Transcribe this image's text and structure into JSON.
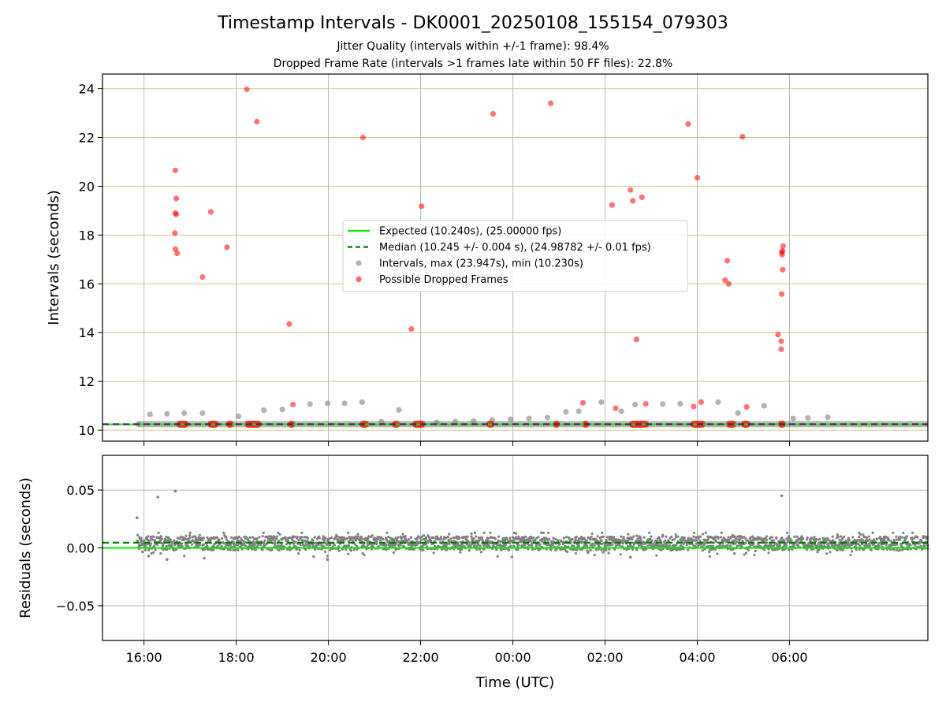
{
  "chart_data": [
    {
      "type": "scatter",
      "title": "Timestamp Intervals - DK0001_20250108_155154_079303",
      "subtitle_lines": [
        "Jitter Quality (intervals within +/-1 frame): 98.4%",
        "Dropped Frame Rate (intervals >1 frames late within 50 FF files): 22.8%"
      ],
      "xlabel": "",
      "ylabel": "Intervals (seconds)",
      "xlim_hours": [
        15.1,
        33.0
      ],
      "ylim": [
        9.55,
        24.6
      ],
      "yticks": [
        10,
        12,
        14,
        16,
        18,
        20,
        22,
        24
      ],
      "ytick_labels": [
        "10",
        "12",
        "14",
        "16",
        "18",
        "20",
        "22",
        "24"
      ],
      "grid": true,
      "grid_colors": {
        "x": "#b8b8b8",
        "y": "#d4c58a"
      },
      "legend_placement": "center",
      "legend": [
        {
          "label": "Expected (10.240s), (25.00000 fps)",
          "style": "solid-line",
          "color": "#00ee00"
        },
        {
          "label": "Median (10.245 +/- 0.004 s), (24.98782 +/- 0.01 fps)",
          "style": "dashed-line",
          "color": "#007f00"
        },
        {
          "label": "Intervals, max (23.947s), min (10.230s)",
          "style": "point",
          "color": "#808080"
        },
        {
          "label": "Possible Dropped Frames",
          "style": "point",
          "color": "#ff0000"
        }
      ],
      "reference_lines": {
        "expected": 10.24,
        "median": 10.245
      },
      "series": [
        {
          "name": "Intervals, max (23.947s), min (10.230s)",
          "color": "#808080",
          "band": {
            "start_hour": 15.87,
            "end_hour": 33.0,
            "value": 10.245
          },
          "points": [
            [
              15.87,
              10.25
            ],
            [
              16.13,
              10.65
            ],
            [
              16.5,
              10.67
            ],
            [
              16.87,
              10.7
            ],
            [
              17.27,
              10.7
            ],
            [
              18.05,
              10.57
            ],
            [
              18.6,
              10.82
            ],
            [
              19.0,
              10.85
            ],
            [
              19.6,
              11.07
            ],
            [
              19.98,
              11.1
            ],
            [
              20.35,
              11.1
            ],
            [
              20.73,
              11.15
            ],
            [
              21.15,
              10.35
            ],
            [
              21.53,
              10.83
            ],
            [
              22.35,
              10.32
            ],
            [
              22.75,
              10.35
            ],
            [
              23.15,
              10.38
            ],
            [
              23.55,
              10.42
            ],
            [
              23.95,
              10.45
            ],
            [
              24.35,
              10.48
            ],
            [
              24.75,
              10.52
            ],
            [
              25.15,
              10.75
            ],
            [
              25.43,
              10.78
            ],
            [
              25.92,
              11.15
            ],
            [
              26.35,
              10.77
            ],
            [
              26.65,
              11.05
            ],
            [
              27.25,
              11.07
            ],
            [
              27.63,
              11.08
            ],
            [
              28.45,
              11.15
            ],
            [
              28.88,
              10.7
            ],
            [
              29.45,
              11.0
            ],
            [
              30.08,
              10.48
            ],
            [
              30.4,
              10.5
            ],
            [
              30.83,
              10.53
            ]
          ]
        },
        {
          "name": "Possible Dropped Frames",
          "color": "#ff0000",
          "bands": [
            [
              16.7,
              16.97
            ],
            [
              17.38,
              17.62
            ],
            [
              17.78,
              17.95
            ],
            [
              18.18,
              18.55
            ],
            [
              19.12,
              19.28
            ],
            [
              20.68,
              20.88
            ],
            [
              21.38,
              21.55
            ],
            [
              21.82,
              22.1
            ],
            [
              23.43,
              23.6
            ],
            [
              24.87,
              25.02
            ],
            [
              25.5,
              25.65
            ],
            [
              26.52,
              26.95
            ],
            [
              27.85,
              28.18
            ],
            [
              28.62,
              28.85
            ],
            [
              28.95,
              29.15
            ],
            [
              29.75,
              29.92
            ]
          ],
          "points": [
            [
              16.68,
              20.65
            ],
            [
              16.7,
              19.5
            ],
            [
              16.68,
              18.9
            ],
            [
              16.7,
              18.85
            ],
            [
              16.67,
              18.08
            ],
            [
              16.68,
              17.42
            ],
            [
              16.72,
              17.25
            ],
            [
              17.27,
              16.28
            ],
            [
              17.45,
              18.95
            ],
            [
              17.8,
              17.5
            ],
            [
              18.23,
              23.97
            ],
            [
              18.45,
              22.65
            ],
            [
              19.15,
              14.35
            ],
            [
              19.23,
              11.05
            ],
            [
              20.75,
              22.0
            ],
            [
              21.38,
              18.3
            ],
            [
              21.8,
              14.15
            ],
            [
              22.02,
              19.18
            ],
            [
              23.57,
              22.97
            ],
            [
              24.82,
              23.4
            ],
            [
              25.45,
              16.77
            ],
            [
              25.52,
              11.12
            ],
            [
              26.15,
              19.23
            ],
            [
              26.23,
              10.9
            ],
            [
              26.55,
              19.85
            ],
            [
              26.6,
              19.4
            ],
            [
              26.68,
              13.72
            ],
            [
              26.8,
              19.55
            ],
            [
              26.88,
              11.08
            ],
            [
              27.8,
              22.55
            ],
            [
              27.92,
              10.97
            ],
            [
              28.0,
              20.35
            ],
            [
              28.08,
              11.15
            ],
            [
              28.6,
              16.15
            ],
            [
              28.65,
              16.95
            ],
            [
              28.68,
              16.0
            ],
            [
              28.98,
              22.03
            ],
            [
              29.07,
              10.95
            ],
            [
              29.75,
              13.92
            ],
            [
              29.82,
              13.65
            ],
            [
              29.82,
              13.32
            ],
            [
              29.83,
              15.58
            ],
            [
              29.85,
              16.58
            ],
            [
              29.84,
              17.2
            ],
            [
              29.85,
              17.35
            ],
            [
              29.86,
              17.55
            ],
            [
              29.83,
              17.3
            ]
          ]
        }
      ]
    },
    {
      "type": "scatter",
      "xlabel": "Time (UTC)",
      "ylabel": "Residuals (seconds)",
      "xlim_hours": [
        15.1,
        33.0
      ],
      "ylim": [
        -0.08,
        0.08
      ],
      "yticks": [
        -0.05,
        0.0,
        0.05
      ],
      "ytick_labels": [
        "−0.05",
        "0.00",
        "0.05"
      ],
      "xticks_hours": [
        16,
        18,
        20,
        22,
        24,
        26,
        28,
        30
      ],
      "xtick_labels": [
        "16:00",
        "18:00",
        "20:00",
        "22:00",
        "00:00",
        "02:00",
        "04:00",
        "06:00"
      ],
      "grid": true,
      "reference_lines": {
        "expected": 0.0,
        "median": 0.0045
      },
      "series": [
        {
          "name": "",
          "color": "#808080",
          "start_hour": 15.85,
          "end_hour": 33.0,
          "spread_range": [
            -0.011,
            0.013
          ],
          "outliers": [
            [
              15.85,
              0.026
            ],
            [
              16.3,
              0.044
            ],
            [
              16.68,
              0.049
            ],
            [
              29.83,
              0.045
            ],
            [
              16.1,
              -0.007
            ],
            [
              16.5,
              -0.01
            ],
            [
              19.98,
              -0.01
            ],
            [
              26.55,
              -0.008
            ]
          ]
        }
      ]
    }
  ]
}
